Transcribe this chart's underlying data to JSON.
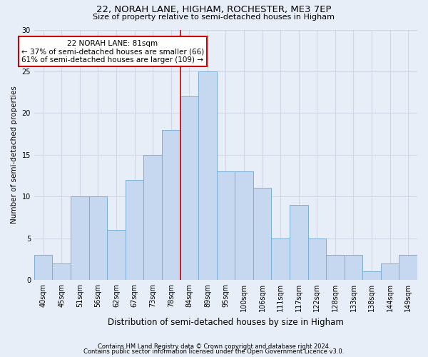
{
  "title1": "22, NORAH LANE, HIGHAM, ROCHESTER, ME3 7EP",
  "title2": "Size of property relative to semi-detached houses in Higham",
  "xlabel": "Distribution of semi-detached houses by size in Higham",
  "ylabel": "Number of semi-detached properties",
  "categories": [
    "40sqm",
    "45sqm",
    "51sqm",
    "56sqm",
    "62sqm",
    "67sqm",
    "73sqm",
    "78sqm",
    "84sqm",
    "89sqm",
    "95sqm",
    "100sqm",
    "106sqm",
    "111sqm",
    "117sqm",
    "122sqm",
    "128sqm",
    "133sqm",
    "138sqm",
    "144sqm",
    "149sqm"
  ],
  "values": [
    3,
    2,
    10,
    10,
    6,
    12,
    15,
    18,
    22,
    25,
    13,
    13,
    11,
    5,
    9,
    5,
    3,
    3,
    1,
    2,
    3
  ],
  "bar_color": "#C5D8EF",
  "bar_edge_color": "#7BAFD4",
  "vline_color": "#CC0000",
  "annotation_box_color": "#FFFFFF",
  "annotation_box_edge": "#CC0000",
  "grid_color": "#D0D8E8",
  "ylim": [
    0,
    30
  ],
  "footer1": "Contains HM Land Registry data © Crown copyright and database right 2024.",
  "footer2": "Contains public sector information licensed under the Open Government Licence v3.0.",
  "bg_color": "#E8EEF8",
  "title1_fontsize": 9.5,
  "title2_fontsize": 8.0,
  "xlabel_fontsize": 8.5,
  "ylabel_fontsize": 7.5,
  "tick_fontsize": 7.0,
  "footer_fontsize": 6.0,
  "annot_fontsize": 7.5
}
